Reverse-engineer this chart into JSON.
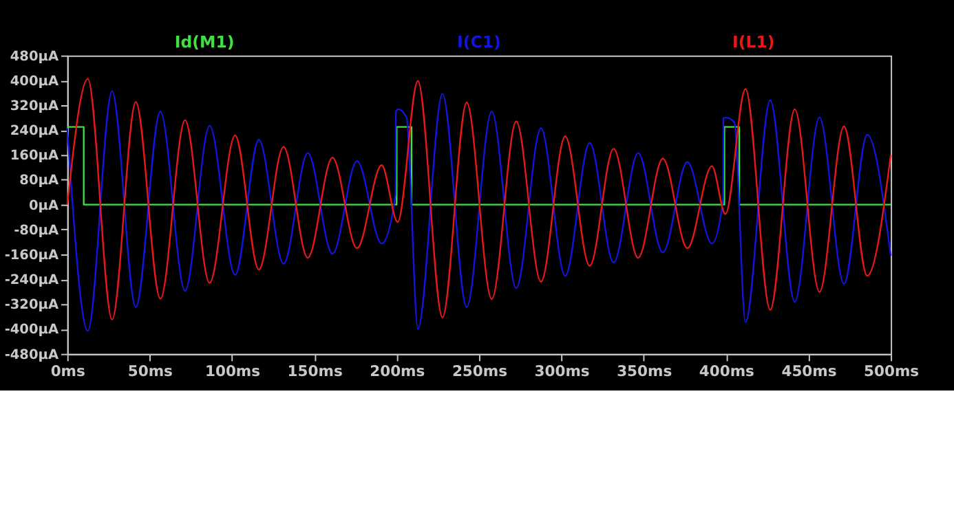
{
  "chart_data": {
    "type": "line",
    "xlim": [
      0,
      500
    ],
    "ylim": [
      -480,
      480
    ],
    "xticks": [
      {
        "value": 0,
        "label": "0ms"
      },
      {
        "value": 50,
        "label": "50ms"
      },
      {
        "value": 100,
        "label": "100ms"
      },
      {
        "value": 150,
        "label": "150ms"
      },
      {
        "value": 200,
        "label": "200ms"
      },
      {
        "value": 250,
        "label": "250ms"
      },
      {
        "value": 300,
        "label": "300ms"
      },
      {
        "value": 350,
        "label": "350ms"
      },
      {
        "value": 400,
        "label": "400ms"
      },
      {
        "value": 450,
        "label": "450ms"
      },
      {
        "value": 500,
        "label": "500ms"
      }
    ],
    "yticks": [
      {
        "value": -480,
        "label": "-480µA"
      },
      {
        "value": -400,
        "label": "-400µA"
      },
      {
        "value": -320,
        "label": "-320µA"
      },
      {
        "value": -240,
        "label": "-240µA"
      },
      {
        "value": -160,
        "label": "-160µA"
      },
      {
        "value": -80,
        "label": "-80µA"
      },
      {
        "value": 0,
        "label": "0µA"
      },
      {
        "value": 80,
        "label": "80µA"
      },
      {
        "value": 160,
        "label": "160µA"
      },
      {
        "value": 240,
        "label": "240µA"
      },
      {
        "value": 320,
        "label": "320µA"
      },
      {
        "value": 400,
        "label": "400µA"
      },
      {
        "value": 480,
        "label": "480µA"
      }
    ],
    "grid": false,
    "legend": "top",
    "marker": "none",
    "line_style": "solid",
    "series": [
      {
        "name": "Id(M1)",
        "color": "#40e040",
        "x": [
          0,
          10,
          10,
          200,
          200,
          209,
          209,
          399,
          399,
          408,
          408,
          500
        ],
        "values": [
          250,
          250,
          0,
          0,
          250,
          250,
          0,
          0,
          250,
          250,
          0,
          0
        ]
      },
      {
        "name": "I(C1)",
        "color": "#1414e0",
        "x": [
          0,
          12.5,
          27.2,
          41.6,
          56.5,
          71.5,
          86.4,
          101.9,
          116.3,
          131.3,
          146.0,
          161.0,
          175.9,
          190.9,
          199.3,
          199.5,
          201,
          206,
          212.9,
          227.8,
          242.5,
          257.7,
          272.6,
          287.6,
          302.3,
          317.2,
          331.7,
          346.6,
          361.6,
          376.5,
          391.4,
          398.2,
          398.4,
          400,
          405,
          411.8,
          426.8,
          441.7,
          456.7,
          471.6,
          485.7,
          500
        ],
        "values": [
          246,
          -406,
          365,
          -330,
          300,
          -277,
          254,
          -226,
          209,
          -190,
          166,
          -158,
          140,
          -125,
          33,
          300,
          307,
          280,
          -400,
          357,
          -330,
          300,
          -269,
          246,
          -229,
          199,
          -186,
          166,
          -154,
          137,
          -125,
          20,
          278,
          280,
          265,
          -378,
          336,
          -313,
          281,
          -255,
          225,
          -165
        ]
      },
      {
        "name": "I(L1)",
        "color": "#e81818",
        "x": [
          0,
          12.5,
          27.2,
          41.6,
          56.5,
          71.5,
          86.4,
          101.9,
          116.3,
          131.3,
          146.0,
          161.0,
          175.9,
          190.9,
          200.6,
          212.9,
          227.8,
          242.5,
          257.7,
          272.6,
          287.6,
          302.3,
          317.2,
          331.7,
          346.6,
          361.6,
          376.5,
          391.4,
          399.6,
          411.8,
          426.8,
          441.7,
          456.7,
          471.6,
          485.7,
          500
        ],
        "values": [
          0,
          405,
          -370,
          331,
          -303,
          272,
          -252,
          223,
          -209,
          186,
          -171,
          151,
          -140,
          127,
          -56,
          398,
          -363,
          329,
          -304,
          268,
          -248,
          220,
          -197,
          180,
          -171,
          148,
          -140,
          124,
          -30,
          372,
          -339,
          307,
          -281,
          252,
          -229,
          160
        ]
      }
    ]
  }
}
